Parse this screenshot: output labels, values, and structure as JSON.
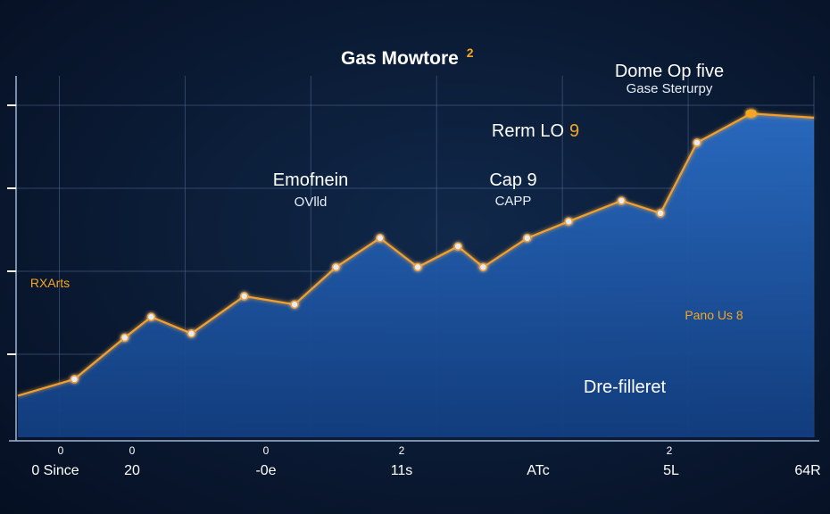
{
  "chart_data": {
    "type": "area",
    "title": "Gas Mowtore",
    "title_superscript": "2",
    "xlabel": "",
    "ylabel": "",
    "grid": true,
    "legend": "none",
    "x_tick_labels": [
      {
        "text": "0 Since",
        "x": 0
      },
      {
        "text": "20",
        "x": 1
      },
      {
        "text": "-0e",
        "x": 2
      },
      {
        "text": "11s",
        "x": 3
      },
      {
        "text": "ATc",
        "x": 4
      },
      {
        "text": "5L",
        "x": 5
      },
      {
        "text": "64R",
        "x": 6
      }
    ],
    "x_tick_mark_labels": [
      "0",
      "0",
      "0",
      "2",
      "2"
    ],
    "xlim": [
      -0.33,
      6.0
    ],
    "ylim": [
      0,
      4
    ],
    "series": [
      {
        "color": "#f0a030",
        "fill": "#1d5aa8",
        "x": [
          -0.33,
          0.12,
          0.52,
          0.73,
          1.05,
          1.47,
          1.87,
          2.2,
          2.55,
          2.85,
          3.17,
          3.37,
          3.72,
          4.05,
          4.47,
          4.78,
          5.07,
          5.5,
          6.0
        ],
        "y": [
          0.5,
          0.7,
          1.2,
          1.45,
          1.25,
          1.7,
          1.6,
          2.05,
          2.4,
          2.05,
          2.3,
          2.05,
          2.4,
          2.6,
          2.85,
          2.7,
          3.55,
          3.9,
          3.85
        ]
      }
    ],
    "annotations": [
      {
        "label": "RXArts",
        "sublabel": "",
        "style": "small-orange",
        "x": 0.12,
        "y": 0.7
      },
      {
        "label": "Emofnein",
        "sublabel": "OVlld",
        "style": "large",
        "x": 1.87,
        "y": 1.6
      },
      {
        "label": "Cap 9",
        "sublabel": "CAPP",
        "style": "large",
        "x": 3.37,
        "y": 2.05
      },
      {
        "label": "Rerm LO",
        "label_suffix": "9",
        "sublabel": "",
        "style": "large",
        "x": 3.72,
        "y": 2.4
      },
      {
        "label": "Dome Op five",
        "sublabel": "Gase Sterurpy",
        "style": "large",
        "x": 4.47,
        "y": 2.85
      },
      {
        "label": "Pano Us 8",
        "sublabel": "",
        "style": "small-orange",
        "x": 5.07,
        "y": 0.05
      },
      {
        "label": "Dre-filleret",
        "sublabel": "",
        "style": "plain",
        "x": 5.07,
        "y": 0.05
      }
    ]
  }
}
